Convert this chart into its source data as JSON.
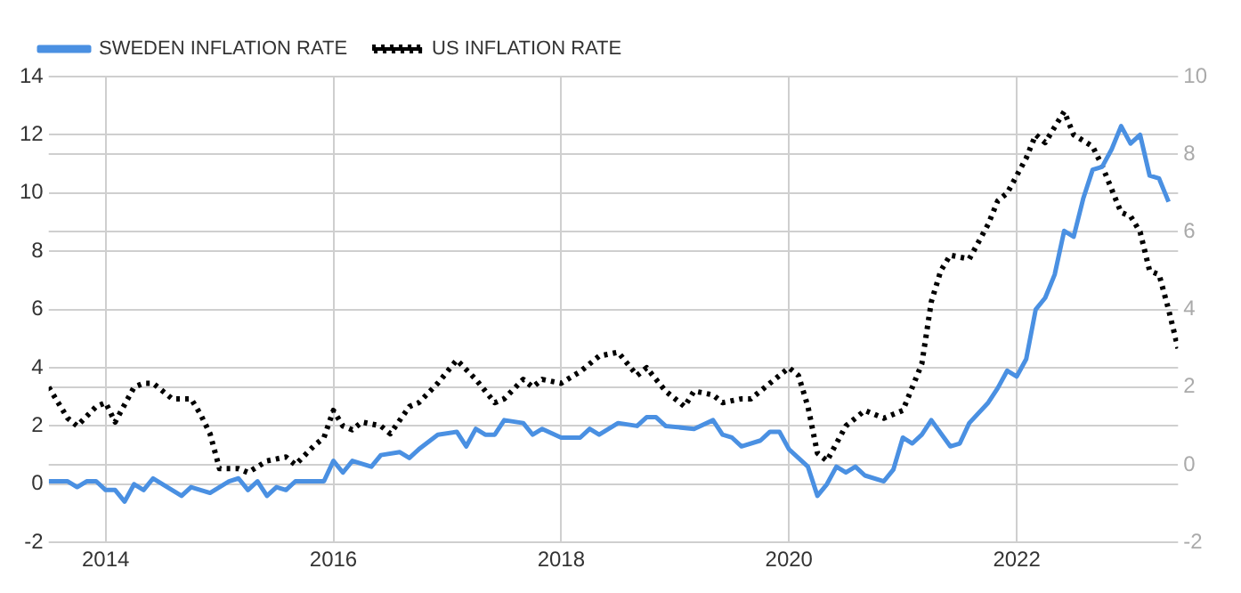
{
  "chart_data": {
    "type": "line",
    "legend": "top left",
    "grid": true,
    "marker": "none",
    "xlim": [
      "2013-07",
      "2023-06"
    ],
    "xticks": [
      "2014",
      "2016",
      "2018",
      "2020",
      "2022"
    ],
    "ylim": [
      -2,
      14
    ],
    "yticks": [
      -2,
      0,
      2,
      4,
      6,
      8,
      10,
      12,
      14
    ],
    "y2lim": [
      -2,
      10
    ],
    "y2ticks": [
      -2,
      0,
      2,
      4,
      6,
      8,
      10
    ],
    "series": [
      {
        "name": "SWEDEN INFLATION RATE",
        "color": "#4a90e2",
        "line_style": "solid",
        "x": [
          "2013-07",
          "2013-09",
          "2013-10",
          "2013-11",
          "2013-12",
          "2014-01",
          "2014-02",
          "2014-03",
          "2014-04",
          "2014-05",
          "2014-06",
          "2014-09",
          "2014-10",
          "2014-12",
          "2015-02",
          "2015-03",
          "2015-04",
          "2015-05",
          "2015-06",
          "2015-07",
          "2015-08",
          "2015-09",
          "2015-12",
          "2016-01",
          "2016-02",
          "2016-03",
          "2016-05",
          "2016-06",
          "2016-08",
          "2016-09",
          "2016-10",
          "2016-12",
          "2017-02",
          "2017-03",
          "2017-04",
          "2017-05",
          "2017-06",
          "2017-07",
          "2017-09",
          "2017-10",
          "2017-11",
          "2018-01",
          "2018-03",
          "2018-04",
          "2018-05",
          "2018-07",
          "2018-09",
          "2018-10",
          "2018-11",
          "2018-12",
          "2019-03",
          "2019-05",
          "2019-06",
          "2019-07",
          "2019-08",
          "2019-10",
          "2019-11",
          "2019-12",
          "2020-01",
          "2020-03",
          "2020-04",
          "2020-05",
          "2020-06",
          "2020-07",
          "2020-08",
          "2020-09",
          "2020-11",
          "2020-12",
          "2021-01",
          "2021-02",
          "2021-03",
          "2021-04",
          "2021-06",
          "2021-07",
          "2021-08",
          "2021-10",
          "2021-11",
          "2021-12",
          "2022-01",
          "2022-02",
          "2022-03",
          "2022-04",
          "2022-05",
          "2022-06",
          "2022-07",
          "2022-08",
          "2022-09",
          "2022-10",
          "2022-11",
          "2022-12",
          "2023-01",
          "2023-02",
          "2023-03",
          "2023-04",
          "2023-05"
        ],
        "values": [
          0.1,
          0.1,
          -0.1,
          0.1,
          0.1,
          -0.2,
          -0.2,
          -0.6,
          0.0,
          -0.2,
          0.2,
          -0.4,
          -0.1,
          -0.3,
          0.1,
          0.2,
          -0.2,
          0.1,
          -0.4,
          -0.1,
          -0.2,
          0.1,
          0.1,
          0.8,
          0.4,
          0.8,
          0.6,
          1.0,
          1.1,
          0.9,
          1.2,
          1.7,
          1.8,
          1.3,
          1.9,
          1.7,
          1.7,
          2.2,
          2.1,
          1.7,
          1.9,
          1.6,
          1.6,
          1.9,
          1.7,
          2.1,
          2.0,
          2.3,
          2.3,
          2.0,
          1.9,
          2.2,
          1.7,
          1.6,
          1.3,
          1.5,
          1.8,
          1.8,
          1.2,
          0.6,
          -0.4,
          0.0,
          0.6,
          0.4,
          0.6,
          0.3,
          0.1,
          0.5,
          1.6,
          1.4,
          1.7,
          2.2,
          1.3,
          1.4,
          2.1,
          2.8,
          3.3,
          3.9,
          3.7,
          4.3,
          6.0,
          6.4,
          7.2,
          8.7,
          8.5,
          9.8,
          10.8,
          10.9,
          11.5,
          12.3,
          11.7,
          12.0,
          10.6,
          10.5,
          9.7
        ]
      },
      {
        "name": "US INFLATION RATE",
        "color": "#000000",
        "line_style": "dotted",
        "axis": "y2",
        "x": [
          "2013-07",
          "2013-09",
          "2013-10",
          "2013-12",
          "2014-01",
          "2014-02",
          "2014-04",
          "2014-05",
          "2014-06",
          "2014-08",
          "2014-10",
          "2014-11",
          "2014-12",
          "2015-01",
          "2015-03",
          "2015-04",
          "2015-06",
          "2015-08",
          "2015-09",
          "2015-11",
          "2015-12",
          "2016-01",
          "2016-02",
          "2016-03",
          "2016-04",
          "2016-06",
          "2016-07",
          "2016-09",
          "2016-10",
          "2016-12",
          "2017-02",
          "2017-04",
          "2017-06",
          "2017-07",
          "2017-09",
          "2017-10",
          "2017-11",
          "2018-01",
          "2018-03",
          "2018-05",
          "2018-07",
          "2018-09",
          "2018-10",
          "2018-12",
          "2019-02",
          "2019-03",
          "2019-05",
          "2019-06",
          "2019-08",
          "2019-09",
          "2019-11",
          "2020-01",
          "2020-02",
          "2020-03",
          "2020-04",
          "2020-05",
          "2020-07",
          "2020-09",
          "2020-11",
          "2021-01",
          "2021-03",
          "2021-04",
          "2021-05",
          "2021-06",
          "2021-08",
          "2021-10",
          "2021-11",
          "2021-12",
          "2022-02",
          "2022-03",
          "2022-04",
          "2022-06",
          "2022-07",
          "2022-09",
          "2022-10",
          "2022-11",
          "2022-12",
          "2023-01",
          "2023-02",
          "2023-03",
          "2023-04",
          "2023-05",
          "2023-06"
        ],
        "values": [
          2.0,
          1.2,
          1.0,
          1.5,
          1.6,
          1.1,
          2.0,
          2.1,
          2.1,
          1.7,
          1.7,
          1.3,
          0.8,
          -0.1,
          -0.1,
          -0.2,
          0.1,
          0.2,
          0.0,
          0.5,
          0.7,
          1.4,
          1.0,
          0.9,
          1.1,
          1.0,
          0.8,
          1.5,
          1.6,
          2.1,
          2.7,
          2.2,
          1.6,
          1.7,
          2.2,
          2.0,
          2.2,
          2.1,
          2.4,
          2.8,
          2.9,
          2.3,
          2.5,
          1.9,
          1.5,
          1.9,
          1.8,
          1.6,
          1.7,
          1.7,
          2.1,
          2.5,
          2.3,
          1.5,
          0.3,
          0.1,
          1.0,
          1.4,
          1.2,
          1.4,
          2.6,
          4.2,
          5.0,
          5.4,
          5.3,
          6.2,
          6.8,
          7.0,
          7.9,
          8.5,
          8.3,
          9.1,
          8.5,
          8.2,
          7.7,
          7.1,
          6.5,
          6.4,
          6.0,
          5.0,
          4.9,
          4.0,
          3.0
        ]
      }
    ]
  }
}
